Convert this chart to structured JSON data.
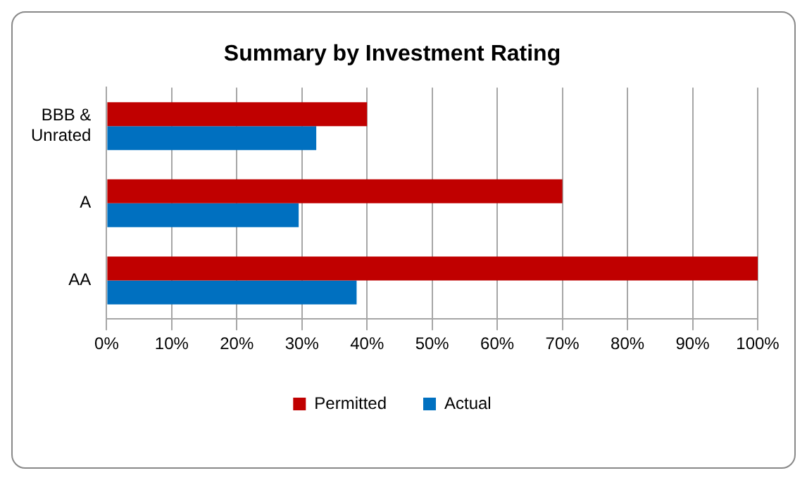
{
  "chart_data": {
    "type": "bar",
    "orientation": "horizontal",
    "title": "Summary by Investment Rating",
    "categories": [
      "BBB & Unrated",
      "A",
      "AA"
    ],
    "series": [
      {
        "name": "Permitted",
        "color": "#c00000",
        "values": [
          40,
          70,
          100
        ]
      },
      {
        "name": "Actual",
        "color": "#0070c0",
        "values": [
          32.2,
          29.5,
          38.4
        ]
      }
    ],
    "xlim": [
      0,
      100
    ],
    "xticks": [
      {
        "value": 0,
        "label": "0%"
      },
      {
        "value": 10,
        "label": "10%"
      },
      {
        "value": 20,
        "label": "20%"
      },
      {
        "value": 30,
        "label": "30%"
      },
      {
        "value": 40,
        "label": "40%"
      },
      {
        "value": 50,
        "label": "50%"
      },
      {
        "value": 60,
        "label": "60%"
      },
      {
        "value": 70,
        "label": "70%"
      },
      {
        "value": 80,
        "label": "80%"
      },
      {
        "value": 90,
        "label": "90%"
      },
      {
        "value": 100,
        "label": "100%"
      }
    ],
    "grid": "x",
    "legend": "bottom"
  }
}
